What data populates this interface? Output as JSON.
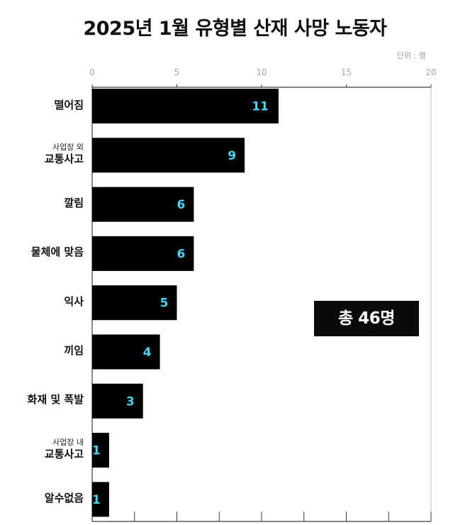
{
  "title": "2025년 1월 유형별 산재 사망 노동자",
  "unit_label": "단위 : 명",
  "total_label": "총 46명",
  "colors": {
    "bar": "#000000",
    "value_label": "#3fd6f5",
    "grid": "#333333",
    "tick_text": "#a6a6a6",
    "badge_bg": "#0b0b0b"
  },
  "chart_data": {
    "type": "bar",
    "orientation": "horizontal",
    "title": "2025년 1월 유형별 산재 사망 노동자",
    "xlabel": "",
    "ylabel": "",
    "unit": "단위 : 명",
    "xlim": [
      0,
      20
    ],
    "xticks": [
      0,
      5,
      10,
      15,
      20
    ],
    "grid": false,
    "categories": [
      {
        "small": "",
        "main": "떨어짐"
      },
      {
        "small": "사업장 외",
        "main": "교통사고"
      },
      {
        "small": "",
        "main": "깔림"
      },
      {
        "small": "",
        "main": "물체에 맞음"
      },
      {
        "small": "",
        "main": "익사"
      },
      {
        "small": "",
        "main": "끼임"
      },
      {
        "small": "",
        "main": "화재 및 폭발"
      },
      {
        "small": "사업장 내",
        "main": "교통사고"
      },
      {
        "small": "",
        "main": "알수없음"
      }
    ],
    "values": [
      11,
      9,
      6,
      6,
      5,
      4,
      3,
      1,
      1
    ],
    "annotation": "총 46명"
  }
}
